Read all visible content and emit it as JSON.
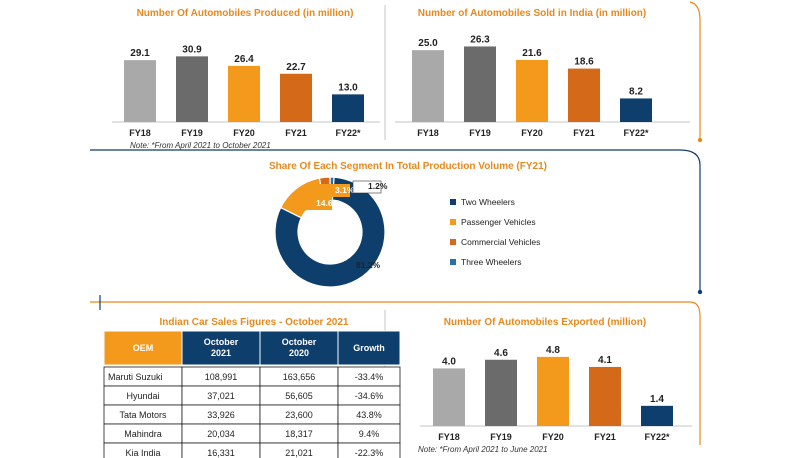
{
  "colors": {
    "accent": "#e8891e",
    "navy": "#0e3e6b",
    "light_gray": "#a9a9a9",
    "dark_gray": "#6b6b6b",
    "orange": "#f39a1c",
    "dark_orange": "#d5691a",
    "blue": "#2a6fa8"
  },
  "chart_data": [
    {
      "type": "bar",
      "title": "Number Of Automobiles Produced (in million)",
      "categories": [
        "FY18",
        "FY19",
        "FY20",
        "FY21",
        "FY22*"
      ],
      "values": [
        29.1,
        30.9,
        26.4,
        22.7,
        13.0
      ],
      "labels": [
        "29.1",
        "30.9",
        "26.4",
        "22.7",
        "13.0"
      ],
      "ylim": [
        0,
        32
      ],
      "note": "Note: *From April 2021 to October 2021"
    },
    {
      "type": "bar",
      "title": "Number of Automobiles Sold in India (in million)",
      "categories": [
        "FY18",
        "FY19",
        "FY20",
        "FY21",
        "FY22*"
      ],
      "values": [
        25.0,
        26.3,
        21.6,
        18.6,
        8.2
      ],
      "labels": [
        "25.0",
        "26.3",
        "21.6",
        "18.6",
        "8.2"
      ],
      "ylim": [
        0,
        27.5
      ]
    },
    {
      "type": "pie",
      "title": "Share Of Each Segment In Total Production Volume (FY21)",
      "slices": [
        {
          "name": "Two Wheelers",
          "value": 81.2,
          "label": "81.2%"
        },
        {
          "name": "Passenger Vehicles",
          "value": 14.6,
          "label": "14.6%"
        },
        {
          "name": "Commercial Vehicles",
          "value": 3.1,
          "label": "3.1%"
        },
        {
          "name": "Three Wheelers",
          "value": 1.2,
          "label": "1.2%"
        }
      ]
    },
    {
      "type": "table",
      "title": "Indian Car Sales Figures - October 2021",
      "columns": [
        "OEM",
        "October 2021",
        "October 2020",
        "Growth"
      ],
      "rows": [
        [
          "Maruti Suzuki",
          "108,991",
          "163,656",
          "-33.4%"
        ],
        [
          "Hyundai",
          "37,021",
          "56,605",
          "-34.6%"
        ],
        [
          "Tata Motors",
          "33,926",
          "23,600",
          "43.8%"
        ],
        [
          "Mahindra",
          "20,034",
          "18,317",
          "9.4%"
        ],
        [
          "Kia India",
          "16,331",
          "21,021",
          "-22.3%"
        ]
      ]
    },
    {
      "type": "bar",
      "title": "Number Of Automobiles Exported (million)",
      "categories": [
        "FY18",
        "FY19",
        "FY20",
        "FY21",
        "FY22*"
      ],
      "values": [
        4.0,
        4.6,
        4.8,
        4.1,
        1.4
      ],
      "labels": [
        "4.0",
        "4.6",
        "4.8",
        "4.1",
        "1.4"
      ],
      "ylim": [
        0,
        5.0
      ],
      "note": "Note: *From April 2021 to June 2021"
    }
  ]
}
